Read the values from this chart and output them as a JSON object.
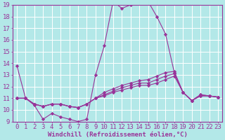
{
  "background_color": "#b3e8e8",
  "grid_color": "#ffffff",
  "line_color": "#993399",
  "xlabel": "Windchill (Refroidissement éolien,°C)",
  "xmin": -0.5,
  "xmax": 23.5,
  "ymin": 9,
  "ymax": 19,
  "yticks": [
    9,
    10,
    11,
    12,
    13,
    14,
    15,
    16,
    17,
    18,
    19
  ],
  "xticks": [
    0,
    1,
    2,
    3,
    4,
    5,
    6,
    7,
    8,
    9,
    10,
    11,
    12,
    13,
    14,
    15,
    16,
    17,
    18,
    19,
    20,
    21,
    22,
    23
  ],
  "series": [
    [
      13.8,
      11.0,
      10.4,
      9.2,
      9.7,
      9.4,
      9.2,
      9.0,
      9.2,
      13.0,
      15.5,
      19.3,
      18.7,
      19.0,
      19.1,
      19.3,
      18.0,
      16.5,
      13.2,
      11.5,
      10.8,
      11.3,
      11.2,
      11.1
    ],
    [
      11.0,
      11.0,
      10.5,
      10.3,
      10.5,
      10.5,
      10.3,
      10.2,
      10.5,
      11.0,
      11.5,
      11.8,
      12.1,
      12.3,
      12.5,
      12.6,
      12.9,
      13.2,
      13.3,
      11.5,
      10.8,
      11.3,
      11.2,
      11.1
    ],
    [
      11.0,
      11.0,
      10.5,
      10.3,
      10.5,
      10.5,
      10.3,
      10.2,
      10.5,
      11.0,
      11.3,
      11.6,
      11.9,
      12.1,
      12.3,
      12.3,
      12.6,
      12.9,
      13.1,
      11.5,
      10.8,
      11.2,
      11.2,
      11.1
    ],
    [
      11.0,
      11.0,
      10.5,
      10.3,
      10.5,
      10.5,
      10.3,
      10.2,
      10.5,
      11.0,
      11.2,
      11.5,
      11.7,
      11.9,
      12.1,
      12.1,
      12.3,
      12.6,
      12.9,
      11.5,
      10.8,
      11.2,
      11.2,
      11.1
    ]
  ],
  "tick_fontsize": 6.5,
  "xlabel_fontsize": 6.5,
  "marker": "D",
  "markersize": 2.2,
  "linewidth": 0.8
}
